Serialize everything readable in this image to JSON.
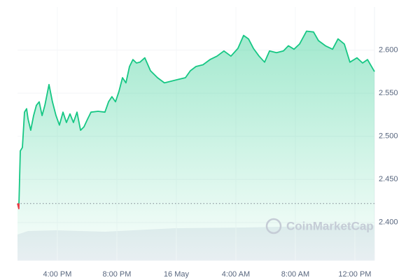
{
  "chart_data": {
    "type": "line",
    "watermark": "CoinMarketCap",
    "x": [
      13.32,
      13.41,
      13.51,
      13.65,
      13.79,
      13.93,
      14.03,
      14.21,
      14.4,
      14.59,
      14.78,
      14.97,
      15.16,
      15.44,
      15.67,
      15.91,
      16.14,
      16.38,
      16.61,
      16.85,
      17.08,
      17.32,
      17.56,
      17.79,
      18.03,
      18.26,
      18.73,
      19.2,
      19.44,
      19.67,
      19.91,
      20.14,
      20.38,
      20.61,
      20.85,
      21.08,
      21.32,
      21.55,
      21.88,
      22.26,
      22.73,
      23.2,
      23.67,
      24.14,
      24.61,
      24.94,
      25.32,
      25.79,
      26.26,
      26.73,
      27.2,
      27.67,
      28.14,
      28.52,
      28.85,
      29.18,
      29.56,
      29.93,
      30.26,
      30.73,
      31.2,
      31.53,
      31.91,
      32.28,
      32.75,
      33.22,
      33.55,
      34.02,
      34.5,
      34.87,
      35.29,
      35.67,
      36.14,
      36.52,
      36.85,
      37.32
    ],
    "series": [
      {
        "color": "#16c784",
        "values": [
          2.422,
          2.416,
          2.483,
          2.487,
          2.528,
          2.532,
          2.52,
          2.507,
          2.524,
          2.536,
          2.54,
          2.524,
          2.536,
          2.56,
          2.54,
          2.524,
          2.513,
          2.528,
          2.516,
          2.526,
          2.516,
          2.528,
          2.507,
          2.511,
          2.52,
          2.528,
          2.529,
          2.528,
          2.54,
          2.546,
          2.54,
          2.552,
          2.568,
          2.562,
          2.581,
          2.589,
          2.585,
          2.586,
          2.591,
          2.576,
          2.568,
          2.562,
          2.564,
          2.566,
          2.568,
          2.576,
          2.581,
          2.583,
          2.589,
          2.593,
          2.599,
          2.593,
          2.602,
          2.617,
          2.613,
          2.602,
          2.593,
          2.586,
          2.599,
          2.597,
          2.599,
          2.605,
          2.601,
          2.607,
          2.622,
          2.621,
          2.611,
          2.605,
          2.601,
          2.613,
          2.607,
          2.586,
          2.591,
          2.585,
          2.589,
          2.575
        ]
      }
    ],
    "reference": 2.422,
    "below_color": "#ea3943",
    "xlim": [
      13.32,
      37.32
    ],
    "xticks": [
      {
        "value": 16,
        "label": "4:00 PM"
      },
      {
        "value": 20,
        "label": "8:00 PM"
      },
      {
        "value": 24,
        "label": "16 May"
      },
      {
        "value": 28,
        "label": "4:00 AM"
      },
      {
        "value": 32,
        "label": "8:00 AM"
      },
      {
        "value": 36,
        "label": "12:00 PM"
      }
    ],
    "ylim": [
      2.356,
      2.65
    ],
    "yticks": [
      {
        "value": 2.4,
        "label": "2.400"
      },
      {
        "value": 2.45,
        "label": "2.450"
      },
      {
        "value": 2.5,
        "label": "2.500"
      },
      {
        "value": 2.55,
        "label": "2.550"
      },
      {
        "value": 2.6,
        "label": "2.600"
      }
    ],
    "grid": true
  }
}
